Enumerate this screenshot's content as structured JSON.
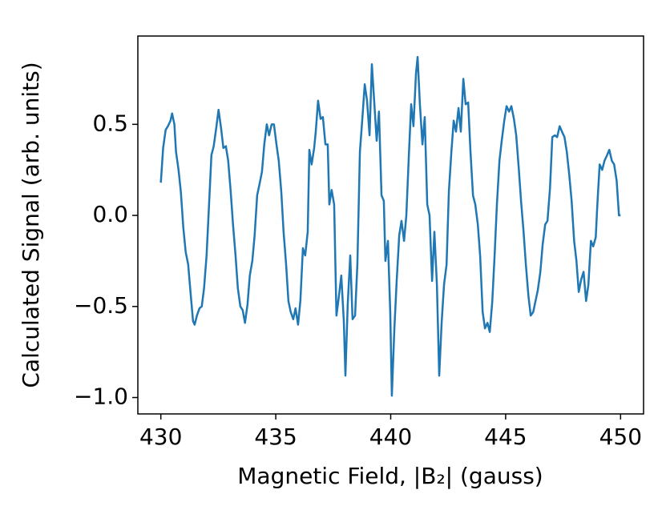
{
  "chart_data": {
    "type": "line",
    "xlabel": "Magnetic Field, |B₂| (gauss)",
    "ylabel": "Calculated Signal (arb. units)",
    "xlim": [
      429,
      451
    ],
    "ylim": [
      -1.09,
      0.985
    ],
    "xticks": [
      430,
      435,
      440,
      445,
      450
    ],
    "yticks": [
      {
        "value": -1.0,
        "label": "−1.0"
      },
      {
        "value": -0.5,
        "label": "−0.5"
      },
      {
        "value": 0.0,
        "label": "0.0"
      },
      {
        "value": 0.5,
        "label": "0.5"
      }
    ],
    "series": [
      {
        "color": "#1f77b4",
        "x": [
          430.0,
          430.1,
          430.21,
          430.31,
          430.42,
          430.49,
          430.59,
          430.66,
          430.77,
          430.87,
          430.98,
          431.08,
          431.19,
          431.29,
          431.4,
          431.47,
          431.57,
          431.68,
          431.78,
          431.88,
          431.99,
          432.09,
          432.2,
          432.3,
          432.41,
          432.51,
          432.62,
          432.72,
          432.83,
          432.93,
          433.04,
          433.14,
          433.25,
          433.35,
          433.46,
          433.56,
          433.66,
          433.77,
          433.87,
          433.98,
          434.08,
          434.19,
          434.29,
          434.4,
          434.5,
          434.61,
          434.71,
          434.82,
          434.92,
          435.03,
          435.13,
          435.24,
          435.34,
          435.45,
          435.55,
          435.65,
          435.76,
          435.86,
          435.97,
          436.07,
          436.18,
          436.28,
          436.39,
          436.46,
          436.56,
          436.67,
          436.74,
          436.84,
          436.95,
          437.05,
          437.16,
          437.26,
          437.33,
          437.43,
          437.54,
          437.64,
          437.75,
          437.85,
          437.96,
          438.03,
          438.13,
          438.24,
          438.34,
          438.45,
          438.55,
          438.66,
          438.76,
          438.87,
          438.97,
          439.08,
          439.18,
          439.29,
          439.39,
          439.49,
          439.6,
          439.7,
          439.77,
          439.88,
          439.98,
          440.05,
          440.16,
          440.26,
          440.37,
          440.47,
          440.58,
          440.68,
          440.79,
          440.89,
          440.99,
          441.1,
          441.17,
          441.27,
          441.38,
          441.48,
          441.59,
          441.69,
          441.8,
          441.9,
          442.01,
          442.11,
          442.22,
          442.32,
          442.43,
          442.53,
          442.64,
          442.74,
          442.84,
          442.95,
          443.05,
          443.16,
          443.26,
          443.37,
          443.47,
          443.58,
          443.68,
          443.79,
          443.89,
          444.0,
          444.1,
          444.21,
          444.31,
          444.42,
          444.52,
          444.62,
          444.73,
          444.83,
          444.94,
          445.04,
          445.15,
          445.25,
          445.36,
          445.46,
          445.57,
          445.67,
          445.78,
          445.88,
          445.99,
          446.09,
          446.2,
          446.3,
          446.4,
          446.51,
          446.61,
          446.72,
          446.82,
          446.93,
          447.03,
          447.14,
          447.24,
          447.35,
          447.45,
          447.56,
          447.66,
          447.77,
          447.87,
          447.98,
          448.08,
          448.18,
          448.29,
          448.39,
          448.5,
          448.6,
          448.71,
          448.81,
          448.92,
          448.99,
          449.09,
          449.2,
          449.3,
          449.41,
          449.51,
          449.62,
          449.72,
          449.83,
          449.93,
          450.0
        ],
        "values": [
          0.18,
          0.37,
          0.47,
          0.49,
          0.52,
          0.56,
          0.5,
          0.35,
          0.25,
          0.13,
          -0.07,
          -0.2,
          -0.27,
          -0.42,
          -0.58,
          -0.6,
          -0.55,
          -0.51,
          -0.5,
          -0.4,
          -0.22,
          0.04,
          0.33,
          0.38,
          0.48,
          0.58,
          0.48,
          0.37,
          0.38,
          0.3,
          0.13,
          -0.05,
          -0.22,
          -0.4,
          -0.5,
          -0.52,
          -0.59,
          -0.49,
          -0.33,
          -0.25,
          -0.11,
          0.11,
          0.17,
          0.24,
          0.39,
          0.5,
          0.44,
          0.5,
          0.5,
          0.39,
          0.3,
          0.13,
          -0.09,
          -0.27,
          -0.47,
          -0.53,
          -0.57,
          -0.51,
          -0.6,
          -0.47,
          -0.18,
          -0.22,
          -0.09,
          0.36,
          0.28,
          0.37,
          0.46,
          0.63,
          0.53,
          0.54,
          0.39,
          0.39,
          0.06,
          0.14,
          0.06,
          -0.55,
          -0.44,
          -0.33,
          -0.58,
          -0.88,
          -0.49,
          -0.22,
          -0.57,
          -0.55,
          -0.27,
          0.35,
          0.52,
          0.72,
          0.63,
          0.44,
          0.83,
          0.61,
          0.41,
          0.57,
          0.11,
          0.08,
          -0.25,
          -0.14,
          -0.53,
          -0.99,
          -0.62,
          -0.36,
          -0.11,
          -0.03,
          -0.14,
          0.0,
          0.33,
          0.61,
          0.49,
          0.78,
          0.87,
          0.61,
          0.39,
          0.54,
          0.06,
          0.0,
          -0.36,
          -0.09,
          -0.38,
          -0.88,
          -0.58,
          -0.38,
          -0.27,
          0.13,
          0.35,
          0.52,
          0.46,
          0.59,
          0.46,
          0.75,
          0.61,
          0.62,
          0.35,
          0.11,
          0.06,
          -0.05,
          -0.22,
          -0.53,
          -0.62,
          -0.59,
          -0.64,
          -0.47,
          -0.22,
          0.06,
          0.3,
          0.41,
          0.52,
          0.6,
          0.57,
          0.6,
          0.53,
          0.44,
          0.26,
          0.08,
          -0.09,
          -0.27,
          -0.44,
          -0.55,
          -0.53,
          -0.47,
          -0.41,
          -0.31,
          -0.16,
          -0.05,
          -0.03,
          0.15,
          0.43,
          0.44,
          0.43,
          0.49,
          0.46,
          0.43,
          0.35,
          0.22,
          0.08,
          -0.14,
          -0.25,
          -0.42,
          -0.35,
          -0.31,
          -0.47,
          -0.38,
          -0.14,
          -0.17,
          -0.12,
          0.06,
          0.28,
          0.25,
          0.3,
          0.33,
          0.36,
          0.3,
          0.28,
          0.19,
          0.0,
          0.0
        ]
      }
    ]
  }
}
